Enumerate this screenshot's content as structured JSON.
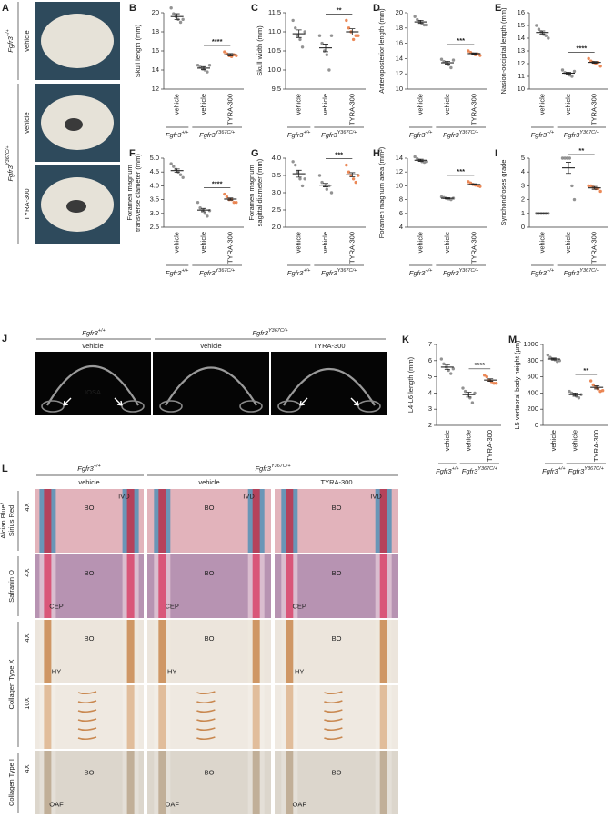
{
  "genotypes": {
    "wt": {
      "gene": "Fgfr3",
      "allele": "+/+"
    },
    "mut": {
      "gene": "Fgfr3",
      "allele": "Y367C/+"
    }
  },
  "panel_a": {
    "panel": "A",
    "rows": [
      "vehicle",
      "vehicle",
      "TYRA-300"
    ]
  },
  "panel_j": {
    "panel": "J",
    "columns": [
      "vehicle",
      "vehicle",
      "TYRA-300"
    ],
    "annotation": "IOSA"
  },
  "panel_l": {
    "panel": "L",
    "columns": [
      "vehicle",
      "vehicle",
      "TYRA-300"
    ],
    "row_labels": [
      {
        "stain": [
          "Alcian Blue/",
          "Sirius Red"
        ],
        "magnifications": [
          "4X"
        ]
      },
      {
        "stain": [
          "Safranin O"
        ],
        "magnifications": [
          "4X"
        ]
      },
      {
        "stain": [
          "Collagen Type X"
        ],
        "magnifications": [
          "4X",
          "10X"
        ]
      },
      {
        "stain": [
          "Collagen Type I"
        ],
        "magnifications": [
          "4X"
        ]
      }
    ],
    "cell_labels": [
      [
        "BO",
        "IVD"
      ],
      [
        "BO",
        "CEP"
      ],
      [
        "BO",
        "HY"
      ],
      [],
      [
        "BO",
        "OAF"
      ]
    ]
  },
  "chart_data": [
    {
      "type": "dot",
      "panel": "B",
      "ylabel": [
        "Skull length (mm)"
      ],
      "categories": [
        "vehicle",
        "vehicle",
        "TYRA-300"
      ],
      "colors": [
        "#808080",
        "#808080",
        "#e8743b"
      ],
      "points": [
        [
          20.5,
          19.9,
          19.6,
          19.3,
          19.0,
          19.3
        ],
        [
          14.5,
          14.3,
          14.1,
          14.0,
          13.8,
          14.5
        ],
        [
          15.9,
          15.7,
          15.5,
          15.4,
          15.6,
          15.5
        ]
      ],
      "values": [
        19.6,
        14.2,
        15.6
      ],
      "errors": [
        0.3,
        0.15,
        0.12
      ],
      "ylim": [
        12,
        20
      ],
      "yticks": [
        12,
        14,
        16,
        18,
        20
      ],
      "significance": {
        "label": "****",
        "between": [
          1,
          2
        ]
      }
    },
    {
      "type": "dot",
      "panel": "C",
      "ylabel": [
        "Skull width (mm)"
      ],
      "categories": [
        "vehicle",
        "vehicle",
        "TYRA-300"
      ],
      "colors": [
        "#808080",
        "#808080",
        "#e8743b"
      ],
      "points": [
        [
          11.3,
          11.1,
          10.9,
          10.8,
          10.6,
          11.0
        ],
        [
          10.9,
          10.7,
          10.5,
          10.4,
          10.0,
          10.9
        ],
        [
          11.3,
          11.1,
          11.0,
          10.8,
          10.9,
          10.9
        ]
      ],
      "values": [
        10.95,
        10.58,
        11.0
      ],
      "errors": [
        0.1,
        0.1,
        0.08
      ],
      "ylim": [
        9.5,
        11.5
      ],
      "yticks": [
        9.5,
        {
          "value": 10,
          "label": "10.0"
        },
        10.5,
        {
          "value": 11,
          "label": "11.0"
        },
        11.5
      ],
      "significance": {
        "label": "**",
        "between": [
          1,
          2
        ]
      }
    },
    {
      "type": "dot",
      "panel": "D",
      "ylabel": [
        "Anteroposterior length (mm)"
      ],
      "categories": [
        "vehicle",
        "vehicle",
        "TYRA-300"
      ],
      "colors": [
        "#808080",
        "#808080",
        "#e8743b"
      ],
      "points": [
        [
          19.5,
          19.1,
          18.8,
          18.6,
          18.4,
          18.4
        ],
        [
          13.9,
          13.6,
          13.4,
          13.2,
          12.8,
          13.8
        ],
        [
          15.0,
          14.8,
          14.6,
          14.5,
          14.6,
          14.4
        ]
      ],
      "values": [
        18.8,
        13.45,
        14.65
      ],
      "errors": [
        0.2,
        0.2,
        0.1
      ],
      "ylim": [
        10,
        20
      ],
      "yticks": [
        10,
        12,
        14,
        16,
        18,
        20
      ],
      "significance": {
        "label": "***",
        "between": [
          1,
          2
        ]
      }
    },
    {
      "type": "dot",
      "panel": "E",
      "ylabel": [
        "Nasion-occipital length (mm)"
      ],
      "categories": [
        "vehicle",
        "vehicle",
        "TYRA-300"
      ],
      "colors": [
        "#808080",
        "#808080",
        "#e8743b"
      ],
      "points": [
        [
          15.0,
          14.7,
          14.5,
          14.3,
          14.2,
          14.0
        ],
        [
          11.5,
          11.3,
          11.2,
          11.1,
          11.0,
          11.4
        ],
        [
          12.4,
          12.2,
          12.1,
          12.0,
          12.1,
          11.8
        ]
      ],
      "values": [
        14.45,
        11.25,
        12.1
      ],
      "errors": [
        0.12,
        0.08,
        0.07
      ],
      "ylim": [
        10,
        16
      ],
      "yticks": [
        10,
        11,
        12,
        13,
        14,
        15,
        16
      ],
      "significance": {
        "label": "****",
        "between": [
          1,
          2
        ]
      }
    },
    {
      "type": "dot",
      "panel": "F",
      "ylabel": [
        "Foramen magnum",
        "transverse diameter (mm)"
      ],
      "categories": [
        "vehicle",
        "vehicle",
        "TYRA-300"
      ],
      "colors": [
        "#808080",
        "#808080",
        "#e8743b"
      ],
      "points": [
        [
          4.8,
          4.7,
          4.6,
          4.5,
          4.4,
          4.3
        ],
        [
          3.4,
          3.2,
          3.1,
          3.0,
          2.9,
          3.1
        ],
        [
          3.7,
          3.6,
          3.5,
          3.5,
          3.4,
          3.4
        ]
      ],
      "values": [
        4.55,
        3.12,
        3.52
      ],
      "errors": [
        0.06,
        0.06,
        0.04
      ],
      "ylim": [
        2.5,
        5
      ],
      "yticks": [
        2.5,
        {
          "value": 3,
          "label": "3.0"
        },
        3.5,
        {
          "value": 4,
          "label": "4.0"
        },
        4.5,
        {
          "value": 5,
          "label": "5.0"
        }
      ],
      "significance": {
        "label": "****",
        "between": [
          1,
          2
        ]
      }
    },
    {
      "type": "dot",
      "panel": "G",
      "ylabel": [
        "Foramen magnum",
        "sagittal diameter (mm)"
      ],
      "categories": [
        "vehicle",
        "vehicle",
        "TYRA-300"
      ],
      "colors": [
        "#808080",
        "#808080",
        "#e8743b"
      ],
      "points": [
        [
          3.9,
          3.8,
          3.6,
          3.4,
          3.2,
          3.4
        ],
        [
          3.5,
          3.3,
          3.2,
          3.1,
          3.2,
          3.0
        ],
        [
          3.8,
          3.6,
          3.5,
          3.4,
          3.3,
          3.5
        ]
      ],
      "values": [
        3.55,
        3.22,
        3.52
      ],
      "errors": [
        0.1,
        0.05,
        0.06
      ],
      "ylim": [
        2,
        4
      ],
      "yticks": [
        {
          "value": 2,
          "label": "2.0"
        },
        2.5,
        {
          "value": 3,
          "label": "3.0"
        },
        3.5,
        {
          "value": 4,
          "label": "4.0"
        }
      ],
      "significance": {
        "label": "***",
        "between": [
          1,
          2
        ]
      }
    },
    {
      "type": "dot",
      "panel": "H",
      "ylabel": [
        "Foramen magnum area (mm²)"
      ],
      "categories": [
        "vehicle",
        "vehicle",
        "TYRA-300"
      ],
      "colors": [
        "#808080",
        "#808080",
        "#e8743b"
      ],
      "points": [
        [
          14.2,
          13.9,
          13.7,
          13.5,
          13.4,
          13.5
        ],
        [
          8.4,
          8.3,
          8.2,
          8.1,
          8.0,
          8.2
        ],
        [
          10.6,
          10.4,
          10.2,
          10.1,
          10.0,
          9.9
        ]
      ],
      "values": [
        13.7,
        8.2,
        10.2
      ],
      "errors": [
        0.15,
        0.08,
        0.1
      ],
      "ylim": [
        4,
        14
      ],
      "yticks": [
        4,
        6,
        8,
        10,
        12,
        14
      ],
      "significance": {
        "label": "***",
        "between": [
          1,
          2
        ]
      }
    },
    {
      "type": "dot",
      "panel": "I",
      "ylabel": [
        "Synchondroses grade"
      ],
      "categories": [
        "vehicle",
        "vehicle",
        "TYRA-300"
      ],
      "colors": [
        "#808080",
        "#808080",
        "#e8743b"
      ],
      "points": [
        [
          1,
          1,
          1,
          1,
          1,
          1
        ],
        [
          5,
          5,
          5,
          5,
          3,
          2
        ],
        [
          3,
          3,
          2.9,
          2.8,
          2.8,
          2.6
        ]
      ],
      "values": [
        1,
        4.3,
        2.85
      ],
      "errors": [
        0,
        0.4,
        0.1
      ],
      "ylim": [
        0,
        5
      ],
      "yticks": [
        0,
        1,
        2,
        3,
        4,
        5
      ],
      "significance": {
        "label": "**",
        "between": [
          1,
          2
        ]
      }
    },
    {
      "type": "dot",
      "panel": "K",
      "ylabel": [
        "L4-L6 length (mm)"
      ],
      "categories": [
        "vehicle",
        "vehicle",
        "TYRA-300"
      ],
      "colors": [
        "#808080",
        "#808080",
        "#e8743b"
      ],
      "points": [
        [
          6.1,
          5.8,
          5.6,
          5.4,
          5.2,
          5.5
        ],
        [
          4.3,
          4.1,
          3.9,
          3.7,
          3.4,
          4.0
        ],
        [
          5.1,
          5.0,
          4.8,
          4.7,
          4.6,
          4.6
        ]
      ],
      "values": [
        5.6,
        3.9,
        4.8
      ],
      "errors": [
        0.15,
        0.15,
        0.08
      ],
      "ylim": [
        2,
        7
      ],
      "yticks": [
        2,
        3,
        4,
        5,
        6,
        7
      ],
      "significance": {
        "label": "****",
        "between": [
          1,
          2
        ]
      }
    },
    {
      "type": "dot",
      "panel": "M",
      "ylabel": [
        "L5 vertebral body height (µm)"
      ],
      "categories": [
        "vehicle",
        "vehicle",
        "TYRA-300"
      ],
      "colors": [
        "#808080",
        "#808080",
        "#e8743b"
      ],
      "points": [
        [
          870,
          840,
          820,
          810,
          790,
          800
        ],
        [
          420,
          400,
          380,
          360,
          340,
          380
        ],
        [
          550,
          500,
          470,
          450,
          420,
          430
        ]
      ],
      "values": [
        820,
        380,
        470
      ],
      "errors": [
        12,
        20,
        20
      ],
      "ylim": [
        0,
        1000
      ],
      "yticks": [
        0,
        200,
        400,
        600,
        800,
        1000
      ],
      "significance": {
        "label": "**",
        "between": [
          1,
          2
        ]
      }
    }
  ]
}
